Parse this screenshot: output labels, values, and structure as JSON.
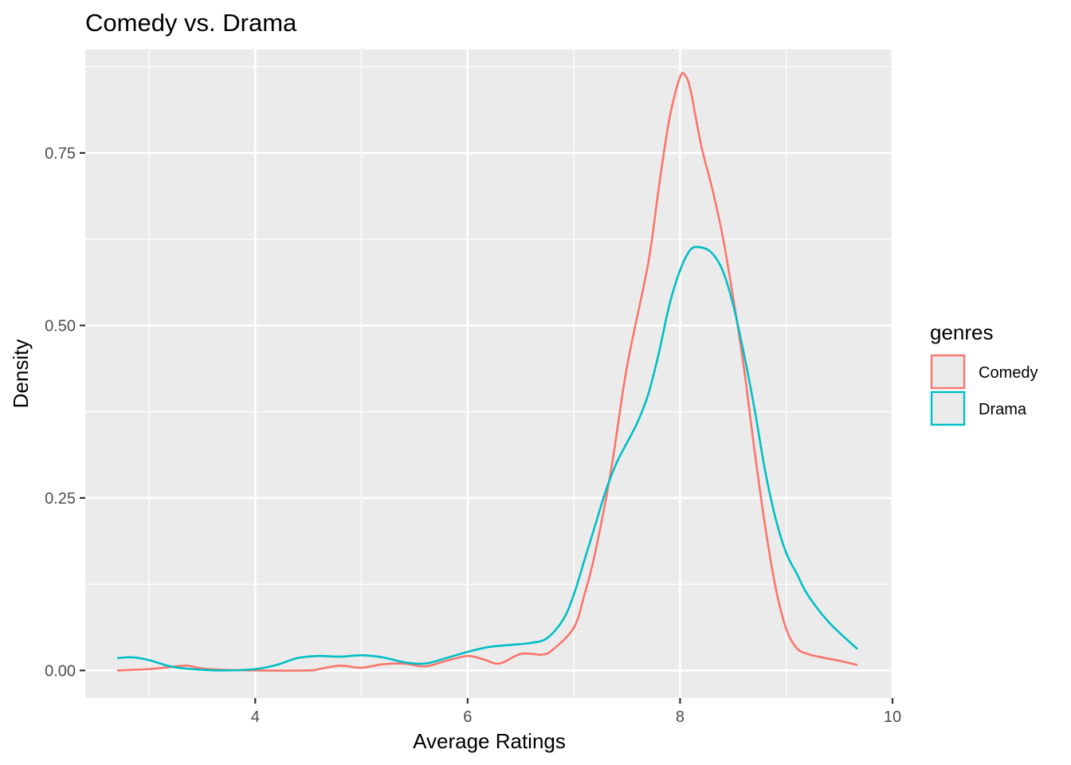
{
  "chart_data": {
    "type": "line",
    "title": "Comedy vs. Drama",
    "xlabel": "Average Ratings",
    "ylabel": "Density",
    "xlim": [
      2.4,
      10
    ],
    "ylim": [
      -0.04,
      0.9
    ],
    "x_ticks": [
      4,
      6,
      8,
      10
    ],
    "x_tick_labels": [
      "4",
      "6",
      "8",
      "10"
    ],
    "y_ticks": [
      0,
      0.25,
      0.5,
      0.75
    ],
    "y_tick_labels": [
      "0.00",
      "0.25",
      "0.50",
      "0.75"
    ],
    "grid": true,
    "legend": {
      "title": "genres",
      "position": "right"
    },
    "series": [
      {
        "name": "Comedy",
        "color": "#F8766D",
        "x": [
          2.7,
          3.0,
          3.2,
          3.35,
          3.5,
          3.7,
          4.0,
          4.5,
          4.6,
          4.8,
          5.0,
          5.2,
          5.4,
          5.6,
          5.8,
          6.0,
          6.15,
          6.3,
          6.5,
          6.7,
          6.8,
          7.0,
          7.1,
          7.2,
          7.35,
          7.5,
          7.7,
          7.8,
          7.9,
          8.0,
          8.05,
          8.1,
          8.2,
          8.3,
          8.4,
          8.5,
          8.6,
          8.7,
          8.8,
          8.9,
          9.0,
          9.1,
          9.2,
          9.3,
          9.5,
          9.67
        ],
        "y": [
          0.0,
          0.002,
          0.005,
          0.007,
          0.003,
          0.001,
          0.0,
          0.0,
          0.002,
          0.007,
          0.004,
          0.009,
          0.01,
          0.006,
          0.014,
          0.021,
          0.016,
          0.01,
          0.024,
          0.023,
          0.03,
          0.062,
          0.11,
          0.17,
          0.29,
          0.44,
          0.59,
          0.7,
          0.8,
          0.86,
          0.862,
          0.84,
          0.76,
          0.7,
          0.63,
          0.54,
          0.44,
          0.32,
          0.21,
          0.12,
          0.06,
          0.032,
          0.024,
          0.02,
          0.014,
          0.008
        ]
      },
      {
        "name": "Drama",
        "color": "#00BFC4",
        "x": [
          2.7,
          2.85,
          3.0,
          3.2,
          3.4,
          3.7,
          4.0,
          4.2,
          4.4,
          4.6,
          4.8,
          5.0,
          5.2,
          5.4,
          5.6,
          5.8,
          6.0,
          6.2,
          6.4,
          6.6,
          6.75,
          6.9,
          7.0,
          7.1,
          7.2,
          7.3,
          7.4,
          7.5,
          7.6,
          7.7,
          7.8,
          7.9,
          8.0,
          8.1,
          8.2,
          8.3,
          8.4,
          8.5,
          8.6,
          8.7,
          8.8,
          8.9,
          9.0,
          9.1,
          9.2,
          9.4,
          9.67
        ],
        "y": [
          0.018,
          0.019,
          0.015,
          0.006,
          0.002,
          0.0,
          0.002,
          0.008,
          0.018,
          0.021,
          0.02,
          0.022,
          0.019,
          0.012,
          0.01,
          0.018,
          0.027,
          0.034,
          0.037,
          0.04,
          0.047,
          0.074,
          0.11,
          0.16,
          0.21,
          0.26,
          0.3,
          0.33,
          0.36,
          0.4,
          0.46,
          0.53,
          0.58,
          0.61,
          0.613,
          0.605,
          0.58,
          0.53,
          0.46,
          0.38,
          0.29,
          0.22,
          0.17,
          0.14,
          0.11,
          0.07,
          0.031
        ]
      }
    ]
  }
}
